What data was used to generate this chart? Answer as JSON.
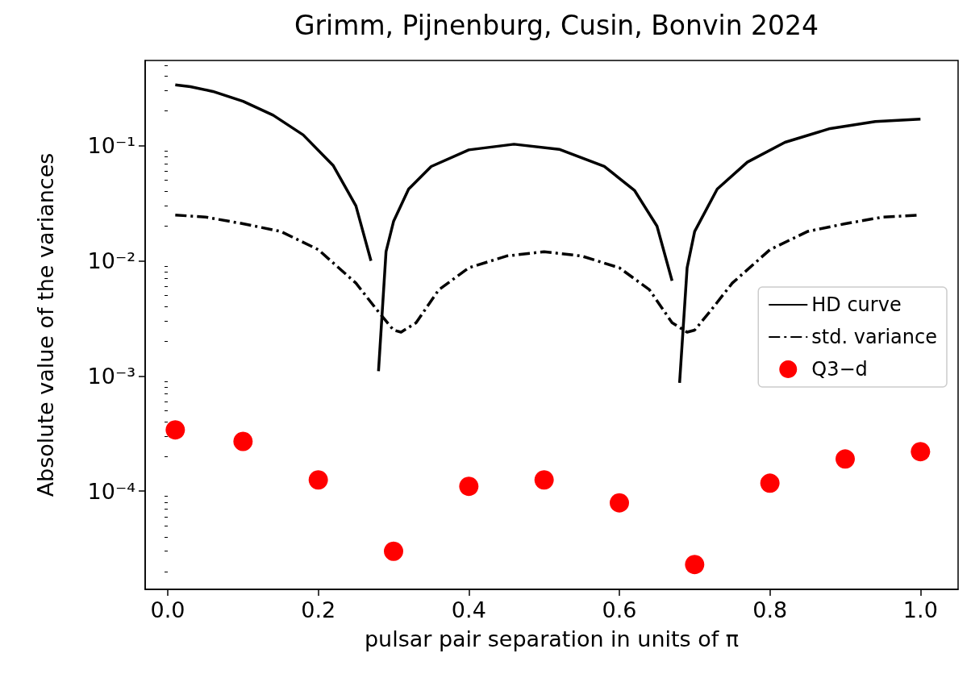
{
  "chart_data": {
    "type": "line",
    "title": "Grimm, Pijnenburg, Cusin, Bonvin 2024",
    "xlabel": "pulsar pair separation in units of π",
    "ylabel": "Absolute value of the variances",
    "log": "y",
    "grid": false,
    "legend": "right",
    "xlim": [
      -0.03,
      1.05
    ],
    "xticks": [
      {
        "value": 0,
        "label": "0.0"
      },
      0.2,
      0.4,
      0.6,
      0.8,
      {
        "value": 1,
        "label": "1.0"
      }
    ],
    "ylim": [
      1.4e-05,
      0.55
    ],
    "yticks": [
      {
        "value": 0.0001,
        "label": "10⁻⁴"
      },
      {
        "value": 0.001,
        "label": "10⁻³"
      },
      {
        "value": 0.01,
        "label": "10⁻²"
      },
      {
        "value": 0.1,
        "label": "10⁻¹"
      },
      {
        "value": 2e-05,
        "label": null
      },
      {
        "value": 3e-05,
        "label": null
      },
      {
        "value": 4e-05,
        "label": null
      },
      {
        "value": 5e-05,
        "label": null
      },
      {
        "value": 6e-05,
        "label": null
      },
      {
        "value": 7e-05,
        "label": null
      },
      {
        "value": 8e-05,
        "label": null
      },
      {
        "value": 9e-05,
        "label": null
      },
      {
        "value": 0.0002,
        "label": null
      },
      {
        "value": 0.0003,
        "label": null
      },
      {
        "value": 0.0004,
        "label": null
      },
      {
        "value": 0.0005,
        "label": null
      },
      {
        "value": 0.0006,
        "label": null
      },
      {
        "value": 0.0007,
        "label": null
      },
      {
        "value": 0.0008,
        "label": null
      },
      {
        "value": 0.0009,
        "label": null
      },
      {
        "value": 0.002,
        "label": null
      },
      {
        "value": 0.003,
        "label": null
      },
      {
        "value": 0.004,
        "label": null
      },
      {
        "value": 0.005,
        "label": null
      },
      {
        "value": 0.006,
        "label": null
      },
      {
        "value": 0.007,
        "label": null
      },
      {
        "value": 0.008,
        "label": null
      },
      {
        "value": 0.009,
        "label": null
      },
      {
        "value": 0.02,
        "label": null
      },
      {
        "value": 0.03,
        "label": null
      },
      {
        "value": 0.04,
        "label": null
      },
      {
        "value": 0.05,
        "label": null
      },
      {
        "value": 0.06,
        "label": null
      },
      {
        "value": 0.07,
        "label": null
      },
      {
        "value": 0.08,
        "label": null
      },
      {
        "value": 0.09,
        "label": null
      },
      {
        "value": 0.2,
        "label": null
      },
      {
        "value": 0.3,
        "label": null
      },
      {
        "value": 0.4,
        "label": null
      },
      {
        "value": 0.5,
        "label": null
      }
    ],
    "series": [
      {
        "name": "HD curve",
        "color": "#000000",
        "line_style": "solid",
        "marker": "none",
        "x": [
          0.01,
          0.03,
          0.06,
          0.1,
          0.14,
          0.18,
          0.22,
          0.25,
          0.27,
          0.275,
          0.28,
          0.29,
          0.3,
          0.32,
          0.35,
          0.4,
          0.46,
          0.52,
          0.58,
          0.62,
          0.65,
          0.67,
          0.675,
          0.68,
          0.69,
          0.7,
          0.73,
          0.77,
          0.82,
          0.88,
          0.94,
          1.0
        ],
        "values": [
          0.338,
          0.326,
          0.296,
          0.243,
          0.184,
          0.124,
          0.067,
          0.03,
          0.01,
          null,
          0.0011,
          0.012,
          0.022,
          0.042,
          0.066,
          0.092,
          0.103,
          0.093,
          0.066,
          0.041,
          0.02,
          0.0067,
          null,
          0.00087,
          0.0087,
          0.018,
          0.042,
          0.072,
          0.107,
          0.141,
          0.162,
          0.17
        ]
      },
      {
        "name": "std. variance",
        "color": "#000000",
        "line_style": "dashed",
        "marker": "none",
        "x": [
          0.01,
          0.05,
          0.1,
          0.15,
          0.2,
          0.25,
          0.28,
          0.3,
          0.31,
          0.33,
          0.36,
          0.4,
          0.45,
          0.5,
          0.55,
          0.6,
          0.64,
          0.67,
          0.69,
          0.7,
          0.72,
          0.75,
          0.8,
          0.85,
          0.9,
          0.95,
          1.0
        ],
        "values": [
          0.025,
          0.024,
          0.021,
          0.018,
          0.0125,
          0.0064,
          0.0036,
          0.0025,
          0.0024,
          0.0029,
          0.0056,
          0.0087,
          0.011,
          0.012,
          0.011,
          0.0087,
          0.0056,
          0.0029,
          0.0024,
          0.0025,
          0.0036,
          0.0064,
          0.0125,
          0.018,
          0.021,
          0.024,
          0.025
        ]
      },
      {
        "name": "Q3−d",
        "type": "scatter",
        "color": "#ff0000",
        "marker": "circle",
        "x": [
          0.01,
          0.1,
          0.2,
          0.3,
          0.4,
          0.5,
          0.6,
          0.7,
          0.8,
          0.9,
          1.0
        ],
        "values": [
          0.00034,
          0.00027,
          0.000125,
          3e-05,
          0.00011,
          0.000125,
          7.9e-05,
          2.3e-05,
          0.000117,
          0.00019,
          0.00022
        ]
      }
    ]
  }
}
